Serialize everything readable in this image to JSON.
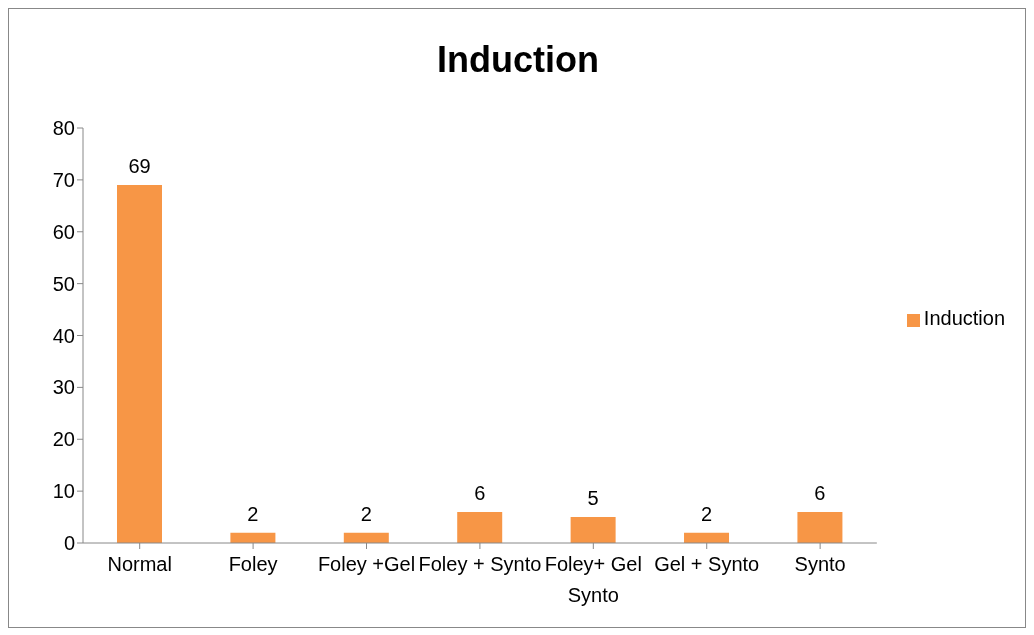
{
  "chart_data": {
    "type": "bar",
    "title": "Induction",
    "categories": [
      "Normal",
      "Foley",
      "Foley +Gel",
      "Foley + Synto",
      "Foley+ Gel Synto",
      "Gel + Synto",
      "Synto"
    ],
    "series": [
      {
        "name": "Induction",
        "color": "#f79646",
        "values": [
          69,
          2,
          2,
          6,
          5,
          2,
          6
        ]
      }
    ],
    "ylim": [
      0,
      80
    ],
    "yticks": [
      0,
      10,
      20,
      30,
      40,
      50,
      60,
      70,
      80
    ],
    "grid": false,
    "legend": "right",
    "data_labels": true
  }
}
